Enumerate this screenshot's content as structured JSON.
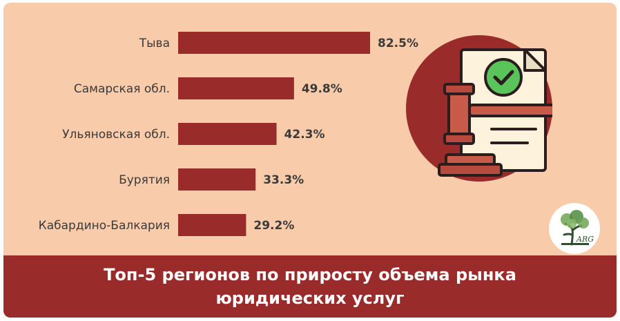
{
  "chart_data": {
    "type": "bar",
    "orientation": "horizontal",
    "categories": [
      "Тыва",
      "Самарская обл.",
      "Ульяновская обл.",
      "Бурятия",
      "Кабардино-Балкария"
    ],
    "values": [
      82.5,
      49.8,
      42.3,
      33.3,
      29.2
    ],
    "value_labels": [
      "82.5%",
      "49.8%",
      "42.3%",
      "33.3%",
      "29.2%"
    ],
    "xlim": [
      0,
      100
    ],
    "grid": false,
    "legend": "none"
  },
  "title_line1": "Топ-5 регионов по приросту объема рынка",
  "title_line2": "юридических услуг",
  "logo_text": "ARG",
  "colors": {
    "background": "#f8cbaa",
    "bar": "#9a2b2b",
    "banner": "#9a2b2b",
    "banner_text": "#ffffff",
    "label_text": "#3a3a3a",
    "icon_circle": "#9a2b2b",
    "document": "#fdf3dc",
    "gavel": "#c85a4a",
    "check": "#58c45a"
  }
}
